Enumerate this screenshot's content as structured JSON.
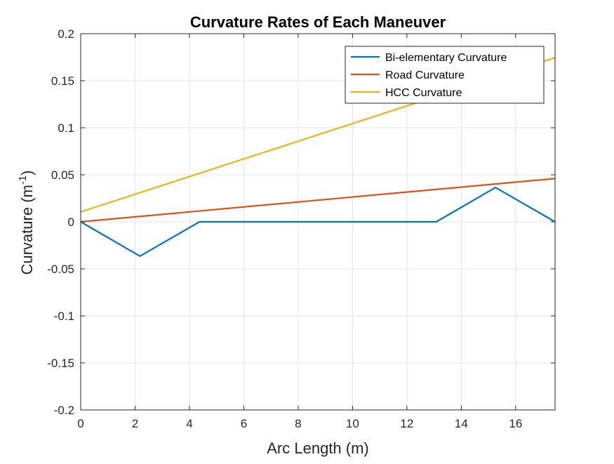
{
  "chart_data": {
    "type": "line",
    "title": "Curvature Rates of Each Maneuver",
    "xlabel": "Arc Length (m)",
    "ylabel": "Curvature (m",
    "ylabel_superscript": "-1",
    "ylabel_suffix": ")",
    "xlim": [
      0,
      17.45
    ],
    "ylim": [
      -0.2,
      0.2
    ],
    "xticks": [
      0,
      2,
      4,
      6,
      8,
      10,
      12,
      14,
      16
    ],
    "xtick_labels": [
      "0",
      "2",
      "4",
      "6",
      "8",
      "10",
      "12",
      "14",
      "16"
    ],
    "yticks": [
      -0.2,
      -0.15,
      -0.1,
      -0.05,
      0,
      0.05,
      0.1,
      0.15,
      0.2
    ],
    "ytick_labels": [
      "-0.2",
      "-0.15",
      "-0.1",
      "-0.05",
      "0",
      "0.05",
      "0.1",
      "0.15",
      "0.2"
    ],
    "grid": true,
    "legend_position": "top-right",
    "series": [
      {
        "name": "Bi-elementary Curvature",
        "color": "#0072BD",
        "x": [
          0,
          2.18,
          4.37,
          13.08,
          15.26,
          17.45
        ],
        "y": [
          0,
          -0.0365,
          0,
          0,
          0.0365,
          0
        ]
      },
      {
        "name": "Road Curvature",
        "color": "#D95319",
        "x": [
          0,
          17.45
        ],
        "y": [
          0,
          0.046
        ]
      },
      {
        "name": "HCC Curvature",
        "color": "#EDB120",
        "x": [
          0,
          17.45
        ],
        "y": [
          0.0105,
          0.1745
        ]
      }
    ]
  }
}
